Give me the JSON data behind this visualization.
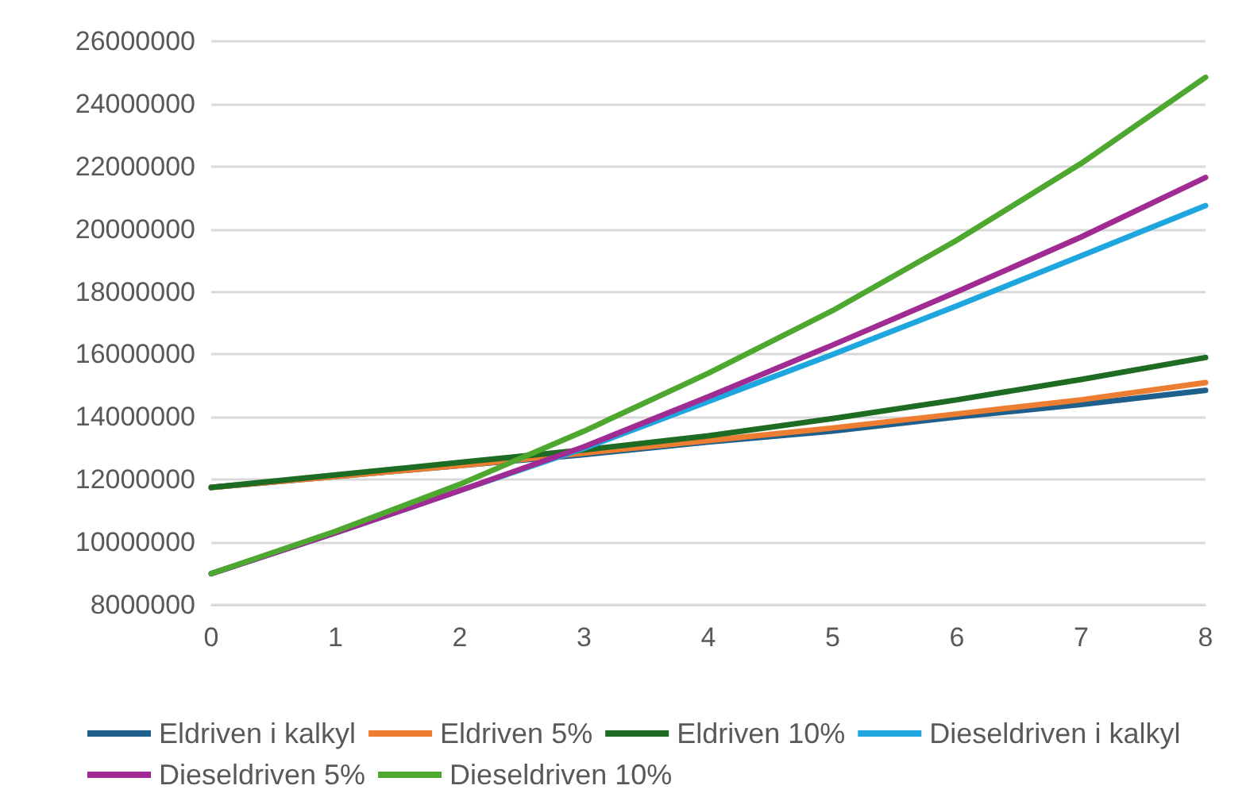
{
  "chart_data": {
    "type": "line",
    "categories": [
      "0",
      "1",
      "2",
      "3",
      "4",
      "5",
      "6",
      "7",
      "8"
    ],
    "series": [
      {
        "name": "Eldriven i kalkyl",
        "color": "#1f5f8b",
        "values": [
          11750000,
          12100000,
          12450000,
          12800000,
          13200000,
          13550000,
          14000000,
          14400000,
          14850000
        ]
      },
      {
        "name": "Eldriven 5%",
        "color": "#ed7d31",
        "values": [
          11750000,
          12100000,
          12450000,
          12850000,
          13250000,
          13650000,
          14100000,
          14550000,
          15100000
        ]
      },
      {
        "name": "Eldriven 10%",
        "color": "#1e6b24",
        "values": [
          11750000,
          12150000,
          12550000,
          12950000,
          13400000,
          13950000,
          14550000,
          15200000,
          15900000
        ]
      },
      {
        "name": "Dieseldriven i kalkyl",
        "color": "#1ea6de",
        "values": [
          9000000,
          10300000,
          11650000,
          13000000,
          14500000,
          16000000,
          17550000,
          19150000,
          20750000
        ]
      },
      {
        "name": "Dieseldriven 5%",
        "color": "#a02b93",
        "values": [
          9000000,
          10300000,
          11650000,
          13050000,
          14650000,
          16300000,
          18000000,
          19750000,
          21650000
        ]
      },
      {
        "name": "Dieseldriven 10%",
        "color": "#4ea72e",
        "values": [
          9000000,
          10350000,
          11850000,
          13550000,
          15400000,
          17400000,
          19650000,
          22100000,
          24850000
        ]
      }
    ],
    "ylim": [
      8000000,
      26000000
    ],
    "yticks": [
      8000000,
      10000000,
      12000000,
      14000000,
      16000000,
      18000000,
      20000000,
      22000000,
      24000000,
      26000000
    ],
    "grid": "y",
    "legend": "bottom",
    "marker": "none",
    "line_style": "solid"
  }
}
